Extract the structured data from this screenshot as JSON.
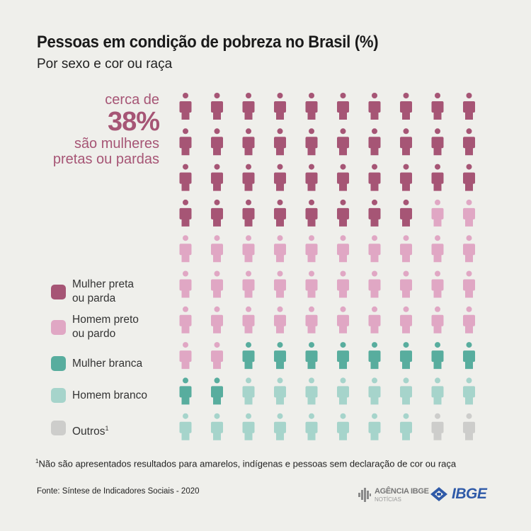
{
  "title": "Pessoas em condição de pobreza no Brasil (%)",
  "subtitle": "Por sexo e cor ou raça",
  "callout": {
    "line1": "cerca de",
    "big": "38%",
    "line2": "são mulheres",
    "line3": "pretas ou pardas",
    "color": "#a65575"
  },
  "legend": [
    {
      "line1": "Mulher preta",
      "line2": "ou parda",
      "color": "#a65575"
    },
    {
      "line1": "Homem preto",
      "line2": "ou pardo",
      "color": "#e0a7c4"
    },
    {
      "line1": "Mulher branca",
      "line2": "",
      "color": "#58ad9e"
    },
    {
      "line1": "Homem branco",
      "line2": "",
      "color": "#a6d4cb"
    },
    {
      "line1": "Outros",
      "line2": "",
      "note_mark": "1",
      "color": "#cdcdcb"
    }
  ],
  "chart_data": {
    "type": "icon-array",
    "unit": "%",
    "grid": {
      "rows": 10,
      "cols": 10
    },
    "icon": "person-icon",
    "categories": [
      "Mulher preta ou parda",
      "Homem preto ou pardo",
      "Mulher branca",
      "Homem branco",
      "Outros"
    ],
    "values": [
      38,
      34,
      10,
      16,
      2
    ],
    "colors": [
      "#a65575",
      "#e0a7c4",
      "#58ad9e",
      "#a6d4cb",
      "#cdcdcb"
    ]
  },
  "footnote": {
    "mark": "1",
    "text": "Não são apresentados resultados para amarelos, indígenas e pessoas sem declaração de cor ou raça"
  },
  "source": "Fonte: Síntese de Indicadores Sociais - 2020",
  "logos": {
    "agencia_name": "AGÊNCIA IBGE",
    "agencia_sub": "NOTÍCIAS",
    "agencia_icon": "agencia-ibge-icon",
    "ibge_name": "IBGE",
    "ibge_icon": "ibge-logo-icon"
  }
}
